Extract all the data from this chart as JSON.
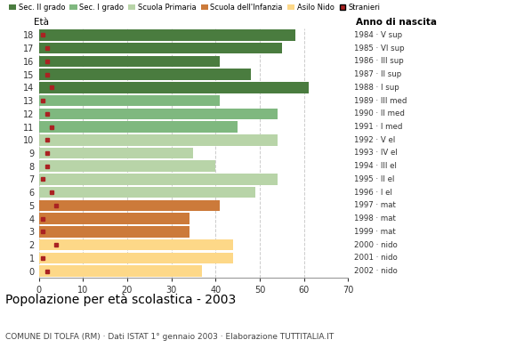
{
  "ages": [
    18,
    17,
    16,
    15,
    14,
    13,
    12,
    11,
    10,
    9,
    8,
    7,
    6,
    5,
    4,
    3,
    2,
    1,
    0
  ],
  "values": [
    58,
    55,
    41,
    48,
    61,
    41,
    54,
    45,
    54,
    35,
    40,
    54,
    49,
    41,
    34,
    34,
    44,
    44,
    37
  ],
  "stranieri": [
    1,
    2,
    2,
    2,
    3,
    1,
    2,
    3,
    2,
    2,
    2,
    1,
    3,
    4,
    1,
    1,
    4,
    1,
    2
  ],
  "bar_colors": [
    "#4a7c3f",
    "#4a7c3f",
    "#4a7c3f",
    "#4a7c3f",
    "#4a7c3f",
    "#7fb87f",
    "#7fb87f",
    "#7fb87f",
    "#b8d4a8",
    "#b8d4a8",
    "#b8d4a8",
    "#b8d4a8",
    "#b8d4a8",
    "#cc7a3a",
    "#cc7a3a",
    "#cc7a3a",
    "#fdd888",
    "#fdd888",
    "#fdd888"
  ],
  "anno_nascita": [
    "1984 · V sup",
    "1985 · VI sup",
    "1986 · III sup",
    "1987 · II sup",
    "1988 · I sup",
    "1989 · III med",
    "1990 · II med",
    "1991 · I med",
    "1992 · V el",
    "1993 · IV el",
    "1994 · III el",
    "1995 · II el",
    "1996 · I el",
    "1997 · mat",
    "1998 · mat",
    "1999 · mat",
    "2000 · nido",
    "2001 · nido",
    "2002 · nido"
  ],
  "legend_labels": [
    "Sec. II grado",
    "Sec. I grado",
    "Scuola Primaria",
    "Scuola dell'Infanzia",
    "Asilo Nido",
    "Stranieri"
  ],
  "legend_colors": [
    "#4a7c3f",
    "#7fb87f",
    "#b8d4a8",
    "#cc7a3a",
    "#fdd888",
    "#aa2222"
  ],
  "stranieri_color": "#aa2222",
  "title": "Popolazione per età scolastica - 2003",
  "subtitle": "COMUNE DI TOLFA (RM) · Dati ISTAT 1° gennaio 2003 · Elaborazione TUTTITALIA.IT",
  "xlabel_eta": "Età",
  "xlabel_anno": "Anno di nascita",
  "xlim": [
    0,
    70
  ],
  "xticks": [
    0,
    10,
    20,
    30,
    40,
    50,
    60,
    70
  ],
  "background_color": "#ffffff",
  "grid_color": "#cccccc"
}
